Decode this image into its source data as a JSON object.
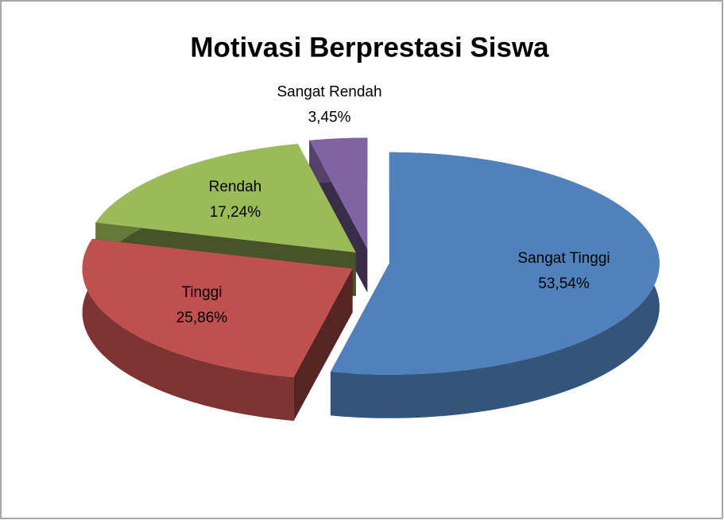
{
  "chart_data": {
    "type": "pie",
    "title": "Motivasi Berprestasi Siswa",
    "categories": [
      "Sangat Tinggi",
      "Tinggi",
      "Rendah",
      "Sangat Rendah"
    ],
    "values": [
      53.54,
      25.86,
      17.24,
      3.45
    ],
    "value_labels": [
      "53,54%",
      "25,86%",
      "17,24%",
      "3,45%"
    ],
    "colors": [
      "#4f81bd",
      "#c0504d",
      "#9bbb59",
      "#8064a2"
    ]
  }
}
